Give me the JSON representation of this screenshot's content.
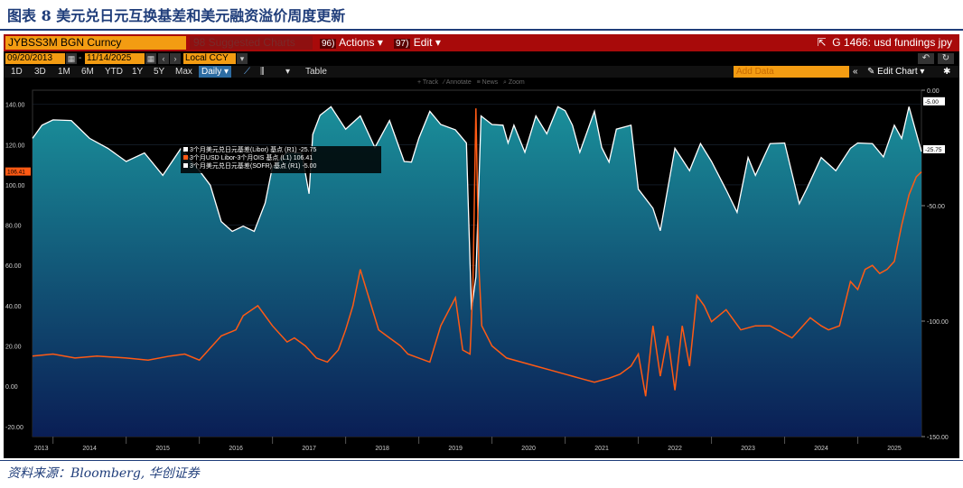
{
  "caption": "图表 8  美元兑日元互换基差和美元融资溢价周度更新",
  "source": "资料来源：Bloomberg, 华创证券",
  "terminal": {
    "ticker": "JYBSS3M BGN Curncy",
    "suggested": "98 Suggested Charts",
    "actions": {
      "num": "96)",
      "label": "Actions"
    },
    "edit": {
      "num": "97)",
      "label": "Edit"
    },
    "title_right": "G 1466: usd fundings jpy",
    "start_date": "09/20/2013",
    "end_date": "11/14/2025",
    "currency": "Local CCY",
    "periods": [
      "1D",
      "3D",
      "1M",
      "6M",
      "YTD",
      "1Y",
      "5Y",
      "Max"
    ],
    "frequency": "Daily",
    "table_label": "Table",
    "add_data_placeholder": "Add Data",
    "edit_chart": "Edit Chart",
    "tools": [
      "Track",
      "Annotate",
      "News",
      "Zoom"
    ]
  },
  "colors": {
    "white_series": "#ffffff",
    "orange_series": "#ff5a14",
    "area_top": "#1a8f9a",
    "area_bottom": "#0a1e55",
    "toolbar_red": "#a80a0a",
    "accent_orange": "#f39c12"
  },
  "chart_data": {
    "type": "line",
    "legend": [
      {
        "label": "3个月美元兑日元基差(Libor) 基点 (R1) -25.75",
        "color": "#ffffff"
      },
      {
        "label": "3个月USD Libor-3个月OIS 基点 (L1)    106.41",
        "color": "#ff5a14"
      },
      {
        "label": "3个月美元兑日元基差(SOFR) 基点 (R1) -5.00",
        "color": "#ffffff"
      }
    ],
    "left_axis": {
      "ticks": [
        "140.00",
        "120.00",
        "100.00",
        "80.00",
        "60.00",
        "40.00",
        "20.00",
        "0.00",
        "-20.00"
      ],
      "range": [
        -25,
        147
      ]
    },
    "right_axis": {
      "ticks": [
        "0.00",
        "-50.00",
        "-100.00",
        "-150.00"
      ],
      "range": [
        -150,
        0
      ]
    },
    "x_ticks": [
      "2013",
      "2014",
      "2015",
      "2016",
      "2017",
      "2018",
      "2019",
      "2020",
      "2021",
      "2022",
      "2023",
      "2024",
      "2025"
    ],
    "x_range": [
      2013.72,
      2025.87
    ],
    "last_values": {
      "left": "106.41",
      "right_a": "-5.00",
      "right_b": "-25.75"
    },
    "series": [
      {
        "name": "3个月美元兑日元基差 (R1)",
        "axis": "right",
        "style": "white-area",
        "x": [
          2013.72,
          2013.85,
          2014.0,
          2014.25,
          2014.5,
          2014.75,
          2015.0,
          2015.25,
          2015.5,
          2015.75,
          2016.0,
          2016.15,
          2016.3,
          2016.45,
          2016.6,
          2016.75,
          2016.9,
          2017.0,
          2017.2,
          2017.4,
          2017.5,
          2017.55,
          2017.65,
          2017.8,
          2018.0,
          2018.2,
          2018.4,
          2018.6,
          2018.8,
          2018.9,
          2019.0,
          2019.15,
          2019.3,
          2019.5,
          2019.65,
          2019.72,
          2019.78,
          2019.85,
          2020.0,
          2020.15,
          2020.22,
          2020.3,
          2020.45,
          2020.6,
          2020.75,
          2020.9,
          2021.0,
          2021.1,
          2021.2,
          2021.4,
          2021.5,
          2021.6,
          2021.7,
          2021.9,
          2022.0,
          2022.2,
          2022.3,
          2022.5,
          2022.7,
          2022.85,
          2023.0,
          2023.2,
          2023.35,
          2023.5,
          2023.6,
          2023.8,
          2024.0,
          2024.2,
          2024.3,
          2024.5,
          2024.7,
          2024.9,
          2025.0,
          2025.2,
          2025.35,
          2025.5,
          2025.6,
          2025.7,
          2025.87
        ],
        "values": [
          -20,
          -16,
          -12,
          -14,
          -20,
          -26,
          -30,
          -28,
          -36,
          -26,
          -34,
          -42,
          -56,
          -62,
          -58,
          -62,
          -48,
          -34,
          -26,
          -28,
          -44,
          -20,
          -10,
          -8,
          -16,
          -12,
          -24,
          -14,
          -30,
          -32,
          -20,
          -10,
          -14,
          -18,
          -22,
          -96,
          -80,
          -12,
          -14,
          -16,
          -22,
          -16,
          -26,
          -12,
          -18,
          -8,
          -8,
          -16,
          -26,
          -10,
          -24,
          -32,
          -16,
          -16,
          -42,
          -52,
          -60,
          -26,
          -34,
          -24,
          -30,
          -44,
          -52,
          -30,
          -36,
          -24,
          -22,
          -50,
          -42,
          -30,
          -34,
          -26,
          -22,
          -24,
          -28,
          -16,
          -20,
          -8,
          -25.75
        ]
      },
      {
        "name": "3个月USD Libor-3个月OIS (L1)",
        "axis": "left",
        "style": "orange-line",
        "x": [
          2013.72,
          2014.0,
          2014.3,
          2014.6,
          2015.0,
          2015.3,
          2015.6,
          2015.8,
          2016.0,
          2016.3,
          2016.5,
          2016.6,
          2016.8,
          2017.0,
          2017.2,
          2017.3,
          2017.45,
          2017.6,
          2017.75,
          2017.9,
          2018.0,
          2018.1,
          2018.2,
          2018.35,
          2018.45,
          2018.6,
          2018.75,
          2018.85,
          2019.0,
          2019.15,
          2019.3,
          2019.5,
          2019.6,
          2019.7,
          2019.74,
          2019.78,
          2019.82,
          2019.86,
          2020.0,
          2020.2,
          2020.4,
          2020.6,
          2020.8,
          2021.0,
          2021.2,
          2021.4,
          2021.6,
          2021.75,
          2021.9,
          2022.0,
          2022.1,
          2022.2,
          2022.3,
          2022.4,
          2022.5,
          2022.6,
          2022.7,
          2022.8,
          2022.9,
          2023.0,
          2023.2,
          2023.4,
          2023.6,
          2023.8,
          2024.0,
          2024.1,
          2024.2,
          2024.35,
          2024.5,
          2024.6,
          2024.75,
          2024.9,
          2025.0,
          2025.1,
          2025.2,
          2025.3,
          2025.4,
          2025.5,
          2025.6,
          2025.7,
          2025.8,
          2025.87
        ],
        "values": [
          15,
          16,
          14,
          15,
          14,
          13,
          15,
          16,
          13,
          25,
          28,
          35,
          40,
          30,
          22,
          24,
          20,
          14,
          12,
          18,
          28,
          40,
          58,
          40,
          28,
          24,
          20,
          16,
          14,
          12,
          30,
          44,
          18,
          16,
          50,
          138,
          60,
          30,
          20,
          14,
          12,
          10,
          8,
          6,
          4,
          2,
          4,
          6,
          10,
          16,
          -5,
          30,
          5,
          25,
          -2,
          30,
          10,
          45,
          40,
          32,
          38,
          28,
          30,
          30,
          26,
          24,
          28,
          34,
          30,
          28,
          30,
          52,
          48,
          58,
          60,
          56,
          58,
          62,
          80,
          95,
          104,
          106.41
        ]
      }
    ]
  }
}
